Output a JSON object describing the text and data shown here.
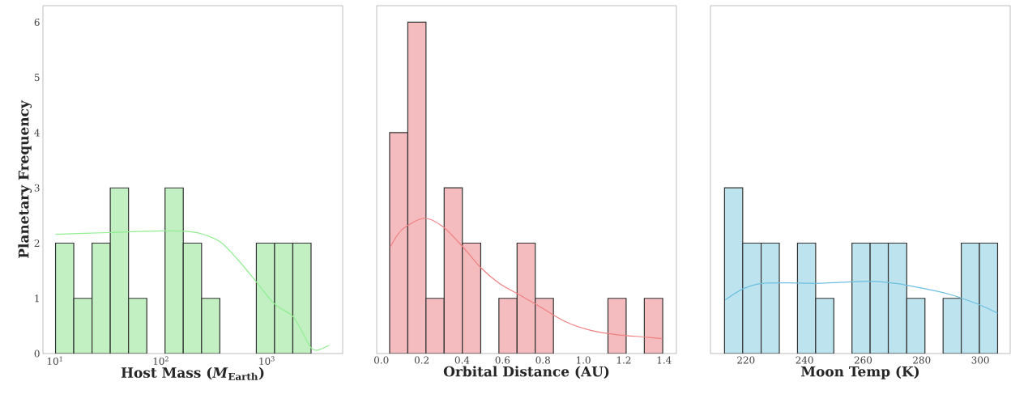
{
  "chart_data": [
    {
      "type": "histogram",
      "ylabel": "Planetary Frequency",
      "xlabel": "Host Mass (*M*$_{Earth}$)",
      "log": "x",
      "grid": false,
      "xlim": [
        7.7,
        5200
      ],
      "xticks": [
        {
          "value": 10,
          "label": "10$^{1}$"
        },
        {
          "value": 100,
          "label": "10$^{2}$"
        },
        {
          "value": 1000,
          "label": "10$^{3}$"
        }
      ],
      "ylim": [
        0,
        6.3
      ],
      "yticks": [
        0,
        1,
        2,
        3,
        4,
        5,
        6
      ],
      "series": [
        {
          "color": "#c2f0c2",
          "bins": [
            10.12,
            15.04,
            22.38,
            33.27,
            49.46,
            73.6,
            109.4,
            162.6,
            242,
            360,
            535,
            796,
            1183,
            1759,
            2615
          ],
          "values": [
            2,
            1,
            2,
            3,
            1,
            0,
            3,
            2,
            1,
            0,
            0,
            2,
            2,
            2
          ]
        },
        {
          "type": "line",
          "color": "#90ee90",
          "x": [
            10.1,
            31.4,
            101.8,
            183,
            261,
            371,
            527,
            796,
            1178,
            1746,
            2158,
            2576,
            2979,
            3880
          ],
          "values": [
            2.16,
            2.19,
            2.22,
            2.21,
            2.15,
            2.01,
            1.71,
            1.3,
            0.9,
            0.68,
            0.39,
            0.12,
            0.06,
            0.15
          ]
        }
      ]
    },
    {
      "type": "histogram",
      "xlabel": "Orbital Distance (AU)",
      "tick_labels": "x",
      "grid": false,
      "xlim": [
        -0.023,
        1.461
      ],
      "xticks": [
        {
          "value": 0,
          "label": "0.0"
        },
        0.2,
        0.4,
        0.6,
        0.8,
        {
          "value": 1,
          "label": "1.0"
        },
        1.2,
        1.4
      ],
      "ylim": [
        0,
        6.3
      ],
      "yticks": [
        0,
        1,
        2,
        3,
        4,
        5,
        6
      ],
      "series": [
        {
          "color": "#f4bcbf",
          "bins": [
            0.041,
            0.131,
            0.221,
            0.311,
            0.401,
            0.492,
            0.582,
            0.672,
            0.762,
            0.852,
            0.942,
            1.032,
            1.122,
            1.212,
            1.302,
            1.393
          ],
          "values": [
            4,
            6,
            1,
            3,
            2,
            0,
            1,
            2,
            1,
            0,
            0,
            0,
            1,
            0,
            1
          ]
        },
        {
          "type": "line",
          "color": "#f08080",
          "x": [
            0.044,
            0.104,
            0.211,
            0.304,
            0.404,
            0.491,
            0.584,
            0.675,
            0.771,
            0.904,
            1.037,
            1.171,
            1.304,
            1.391
          ],
          "values": [
            1.93,
            2.25,
            2.45,
            2.3,
            1.93,
            1.56,
            1.27,
            1.08,
            0.88,
            0.59,
            0.42,
            0.34,
            0.3,
            0.27
          ]
        }
      ]
    },
    {
      "type": "histogram",
      "xlabel": "Moon Temp (K)",
      "tick_labels": "x",
      "grid": false,
      "xlim": [
        207.9,
        310.2
      ],
      "xticks": [
        220,
        240,
        260,
        280,
        300
      ],
      "ylim": [
        0,
        6.3
      ],
      "yticks": [
        0,
        1,
        2,
        3,
        4,
        5,
        6
      ],
      "series": [
        {
          "color": "#bde3ee",
          "bins": [
            212.7,
            218.9,
            225.2,
            231.4,
            237.6,
            243.8,
            250.0,
            256.2,
            262.4,
            268.6,
            274.9,
            281.1,
            287.3,
            293.5,
            299.7,
            305.9
          ],
          "values": [
            3,
            2,
            2,
            0,
            2,
            1,
            0,
            2,
            2,
            2,
            1,
            0,
            1,
            2,
            2
          ]
        },
        {
          "type": "line",
          "color": "#6cbfe0",
          "x": [
            212.9,
            218.9,
            225.3,
            234.5,
            243.7,
            252.9,
            262.1,
            271.3,
            280.5,
            289.7,
            298.9,
            305.9
          ],
          "values": [
            0.97,
            1.17,
            1.27,
            1.28,
            1.27,
            1.29,
            1.31,
            1.27,
            1.18,
            1.07,
            0.9,
            0.73
          ]
        }
      ]
    }
  ]
}
